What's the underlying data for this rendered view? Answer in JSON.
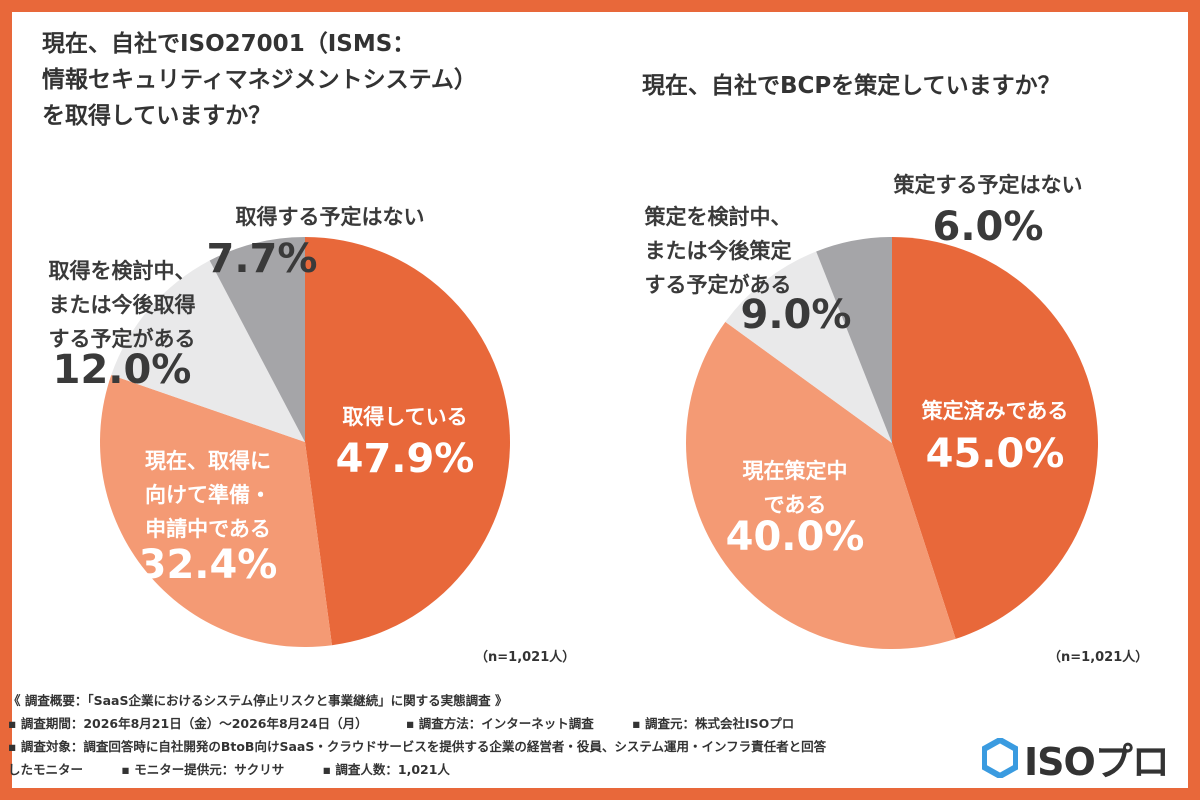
{
  "charts": [
    {
      "title_lines": [
        "現在、自社でISO27001（ISMS：",
        "情報セキュリティマネジメントシステム）",
        "を取得していますか？"
      ],
      "sample_note": "（n=1,021人）"
    },
    {
      "title_lines": [
        "現在、自社でBCPを策定していますか？"
      ],
      "sample_note": "（n=1,021人）"
    }
  ],
  "chart_data": [
    {
      "type": "pie",
      "title": "現在、自社でISO27001（ISMS：情報セキュリティマネジメントシステム）を取得していますか？",
      "start_angle_deg": 0,
      "direction": "clockwise",
      "slices": [
        {
          "label": [
            "取得している"
          ],
          "value": 47.9,
          "display": "47.9%",
          "color": "#e8683a",
          "label_inside": true
        },
        {
          "label": [
            "現在、取得に",
            "向けて準備・",
            "申請中である"
          ],
          "value": 32.4,
          "display": "32.4%",
          "color": "#f49a74",
          "label_inside": true
        },
        {
          "label": [
            "取得を検討中、",
            "または今後取得",
            "する予定がある"
          ],
          "value": 12.0,
          "display": "12.0%",
          "color": "#e9e9ea",
          "label_inside": false
        },
        {
          "label": [
            "取得する予定はない"
          ],
          "value": 7.7,
          "display": "7.7%",
          "color": "#a5a5a8",
          "label_inside": false
        }
      ]
    },
    {
      "type": "pie",
      "title": "現在、自社でBCPを策定していますか？",
      "start_angle_deg": 0,
      "direction": "clockwise",
      "slices": [
        {
          "label": [
            "策定済みである"
          ],
          "value": 45.0,
          "display": "45.0%",
          "color": "#e8683a",
          "label_inside": true
        },
        {
          "label": [
            "現在策定中",
            "である"
          ],
          "value": 40.0,
          "display": "40.0%",
          "color": "#f49a74",
          "label_inside": true
        },
        {
          "label": [
            "策定を検討中、",
            "または今後策定",
            "する予定がある"
          ],
          "value": 9.0,
          "display": "9.0%",
          "color": "#e9e9ea",
          "label_inside": false
        },
        {
          "label": [
            "策定する予定はない"
          ],
          "value": 6.0,
          "display": "6.0%",
          "color": "#a5a5a8",
          "label_inside": false
        }
      ]
    }
  ],
  "footer": {
    "heading": "《 調査概要：「SaaS企業におけるシステム停止リスクと事業継続」に関する実態調査 》",
    "period": "▪ 調査期間：2026年8月21日（金）〜2026年8月24日（月）",
    "method": "▪ 調査方法：インターネット調査",
    "source": "▪ 調査元：株式会社ISOプロ",
    "target_line1": "▪ 調査対象：調査回答時に自社開発のBtoB向けSaaS・クラウドサービスを提供する企業の経営者・役員、システム運用・インフラ責任者と回答",
    "target_line2": "したモニター",
    "provider": "▪ モニター提供元：サクリサ",
    "count": "▪ 調査人数：1,021人"
  },
  "logo": {
    "text": "ISOプロ",
    "color": "#3a9be0"
  }
}
